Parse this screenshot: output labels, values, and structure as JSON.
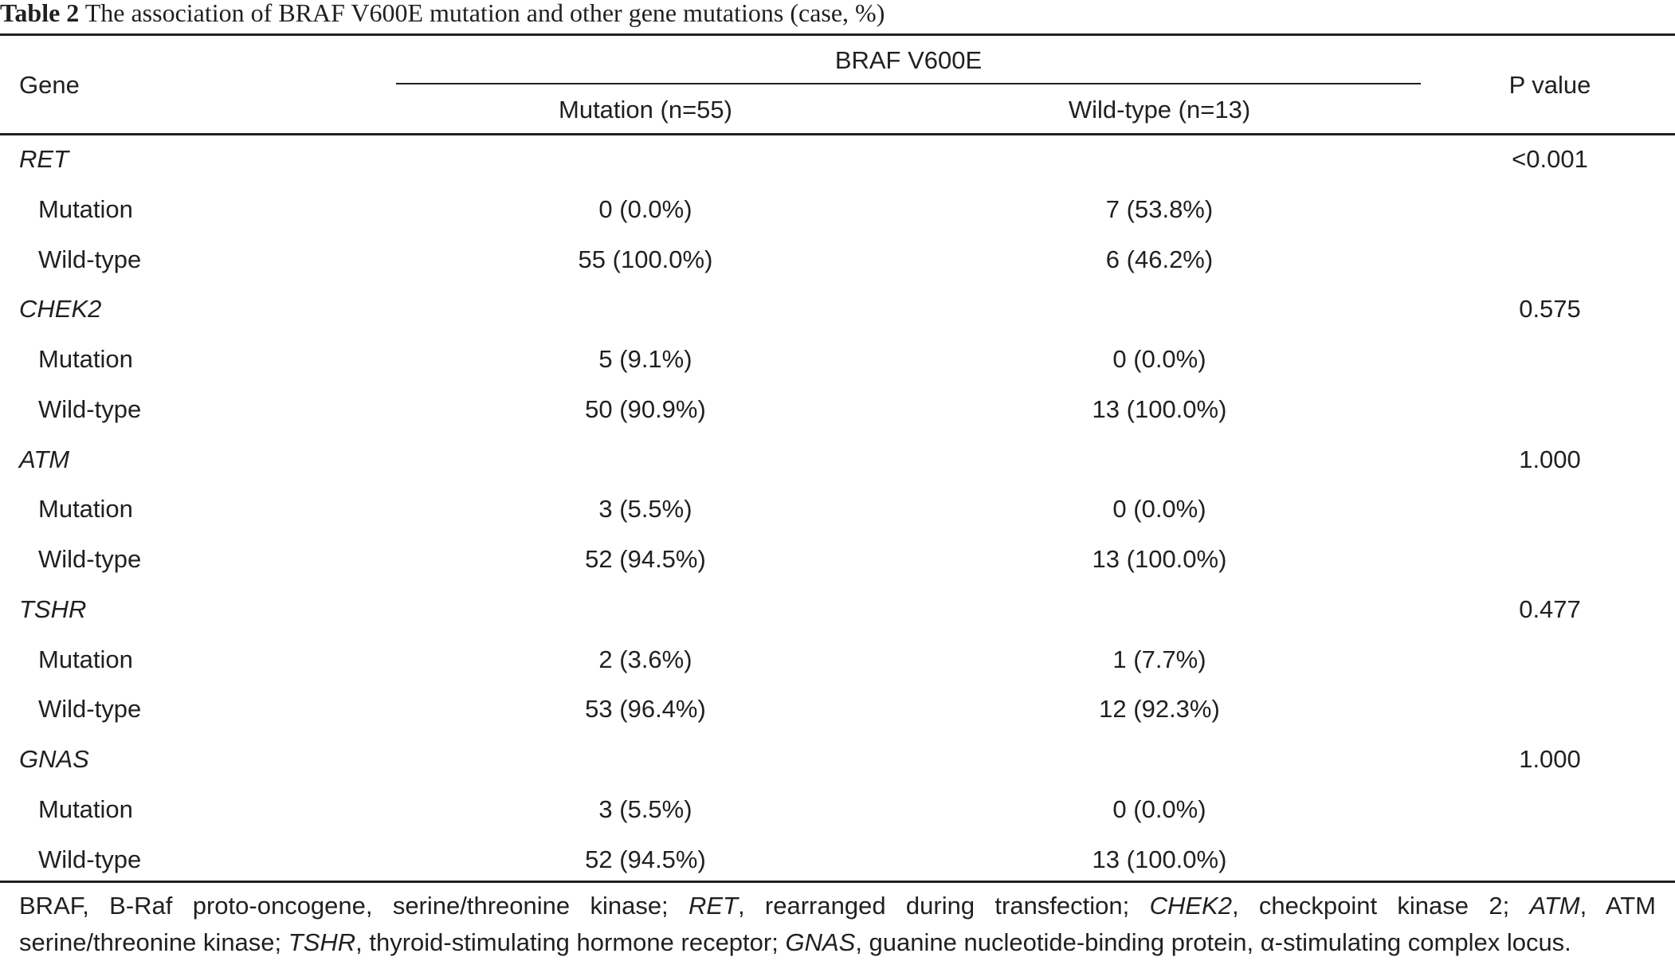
{
  "caption": {
    "label": "Table 2",
    "text": "The association of BRAF V600E mutation and other gene mutations (case, %)"
  },
  "header": {
    "gene": "Gene",
    "group": "BRAF V600E",
    "mutation": "Mutation (n=55)",
    "wildtype": "Wild-type (n=13)",
    "p_value": "P value"
  },
  "rows": [
    {
      "label": "RET",
      "italic": true,
      "mutation": "",
      "wildtype": "",
      "p": "<0.001"
    },
    {
      "label": "Mutation",
      "italic": false,
      "mutation": "0 (0.0%)",
      "wildtype": "7 (53.8%)",
      "p": ""
    },
    {
      "label": "Wild-type",
      "italic": false,
      "mutation": "55 (100.0%)",
      "wildtype": "6 (46.2%)",
      "p": ""
    },
    {
      "label": "CHEK2",
      "italic": true,
      "mutation": "",
      "wildtype": "",
      "p": "0.575"
    },
    {
      "label": "Mutation",
      "italic": false,
      "mutation": "5 (9.1%)",
      "wildtype": "0 (0.0%)",
      "p": ""
    },
    {
      "label": "Wild-type",
      "italic": false,
      "mutation": "50 (90.9%)",
      "wildtype": "13 (100.0%)",
      "p": ""
    },
    {
      "label": "ATM",
      "italic": true,
      "mutation": "",
      "wildtype": "",
      "p": "1.000"
    },
    {
      "label": "Mutation",
      "italic": false,
      "mutation": "3 (5.5%)",
      "wildtype": "0 (0.0%)",
      "p": ""
    },
    {
      "label": "Wild-type",
      "italic": false,
      "mutation": "52 (94.5%)",
      "wildtype": "13 (100.0%)",
      "p": ""
    },
    {
      "label": "TSHR",
      "italic": true,
      "mutation": "",
      "wildtype": "",
      "p": "0.477"
    },
    {
      "label": "Mutation",
      "italic": false,
      "mutation": "2 (3.6%)",
      "wildtype": "1 (7.7%)",
      "p": ""
    },
    {
      "label": "Wild-type",
      "italic": false,
      "mutation": "53 (96.4%)",
      "wildtype": "12 (92.3%)",
      "p": ""
    },
    {
      "label": "GNAS",
      "italic": true,
      "mutation": "",
      "wildtype": "",
      "p": "1.000"
    },
    {
      "label": "Mutation",
      "italic": false,
      "mutation": "3 (5.5%)",
      "wildtype": "0 (0.0%)",
      "p": ""
    },
    {
      "label": "Wild-type",
      "italic": false,
      "mutation": "52 (94.5%)",
      "wildtype": "13 (100.0%)",
      "p": ""
    }
  ],
  "footnote": {
    "line1": [
      {
        "t": "BRAF, B-Raf proto-oncogene, serine/threonine kinase; ",
        "i": false
      },
      {
        "t": "RET",
        "i": true
      },
      {
        "t": ", rearranged during transfection; ",
        "i": false
      },
      {
        "t": "CHEK2",
        "i": true
      },
      {
        "t": ", checkpoint kinase 2; ",
        "i": false
      },
      {
        "t": "ATM",
        "i": true
      },
      {
        "t": ", ATM",
        "i": false
      }
    ],
    "line2": [
      {
        "t": "serine/threonine kinase; ",
        "i": false
      },
      {
        "t": "TSHR",
        "i": true
      },
      {
        "t": ", thyroid-stimulating hormone receptor; ",
        "i": false
      },
      {
        "t": "GNAS",
        "i": true
      },
      {
        "t": ", guanine nucleotide-binding protein, α-stimulating complex locus.",
        "i": false
      }
    ]
  }
}
